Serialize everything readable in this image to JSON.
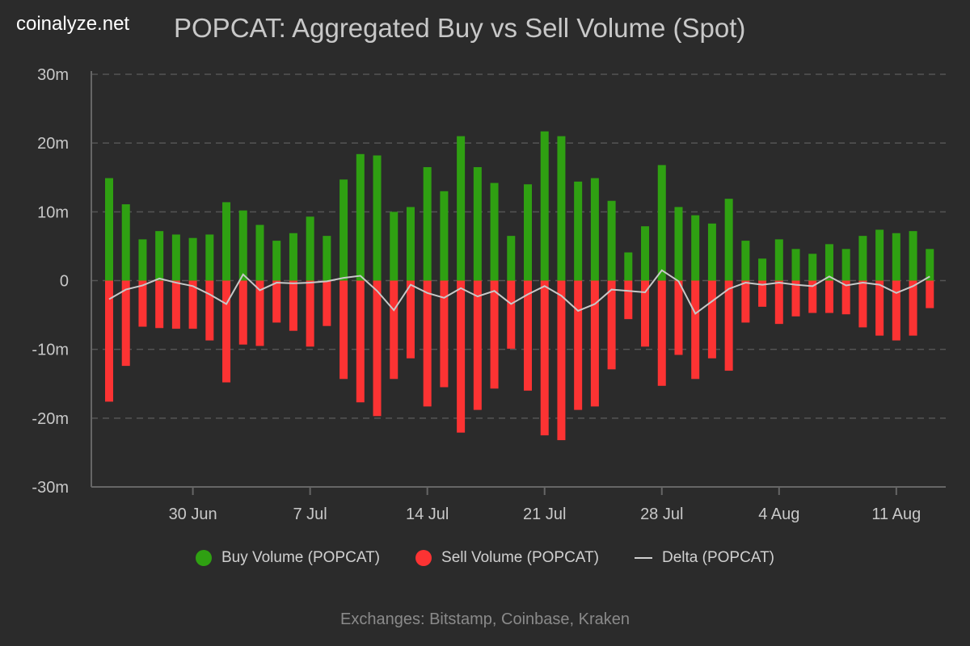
{
  "brand": "coinalyze.net",
  "title": "POPCAT: Aggregated Buy vs Sell Volume (Spot)",
  "footer": "Exchanges: Bitstamp, Coinbase, Kraken",
  "colors": {
    "buy": "#2fa012",
    "sell": "#fc3333",
    "delta": "#c8c8c8",
    "grid": "#555555"
  },
  "chart_data": {
    "type": "bar",
    "title": "POPCAT: Aggregated Buy vs Sell Volume (Spot)",
    "ylim": [
      -30,
      30
    ],
    "y_unit": "m",
    "y_ticks": [
      {
        "v": 30,
        "label": "30m"
      },
      {
        "v": 20,
        "label": "20m"
      },
      {
        "v": 10,
        "label": "10m"
      },
      {
        "v": 0,
        "label": "0"
      },
      {
        "v": -10,
        "label": "-10m"
      },
      {
        "v": -20,
        "label": "-20m"
      },
      {
        "v": -30,
        "label": "-30m"
      }
    ],
    "x_start": "25 Jun",
    "x_end": "13 Aug",
    "x_ticks": [
      {
        "i": 5,
        "label": "30 Jun"
      },
      {
        "i": 12,
        "label": "7 Jul"
      },
      {
        "i": 19,
        "label": "14 Jul"
      },
      {
        "i": 26,
        "label": "21 Jul"
      },
      {
        "i": 33,
        "label": "28 Jul"
      },
      {
        "i": 40,
        "label": "4 Aug"
      },
      {
        "i": 47,
        "label": "11 Aug"
      }
    ],
    "grid": true,
    "legend": "bottom",
    "series": [
      {
        "name": "Buy Volume (POPCAT)",
        "type": "bar",
        "values": [
          14.9,
          11.1,
          6.0,
          7.2,
          6.7,
          6.2,
          6.7,
          11.4,
          10.2,
          8.1,
          5.8,
          6.9,
          9.3,
          6.5,
          14.7,
          18.4,
          18.2,
          10.0,
          10.7,
          16.5,
          13.0,
          21.0,
          16.5,
          14.2,
          6.5,
          14.0,
          21.7,
          21.0,
          14.4,
          14.9,
          11.6,
          4.1,
          7.9,
          16.8,
          10.7,
          9.5,
          8.3,
          11.9,
          5.8,
          3.2,
          6.0,
          4.6,
          3.9,
          5.3,
          4.6,
          6.5,
          7.4,
          6.9,
          7.2,
          4.6
        ]
      },
      {
        "name": "Sell Volume (POPCAT)",
        "type": "bar",
        "values": [
          -17.6,
          -12.4,
          -6.7,
          -6.9,
          -7.0,
          -7.0,
          -8.7,
          -14.8,
          -9.3,
          -9.5,
          -6.1,
          -7.3,
          -9.6,
          -6.6,
          -14.3,
          -17.7,
          -19.7,
          -14.3,
          -11.3,
          -18.3,
          -15.5,
          -22.1,
          -18.8,
          -15.7,
          -9.9,
          -16.0,
          -22.5,
          -23.2,
          -18.8,
          -18.3,
          -12.9,
          -5.6,
          -9.6,
          -15.3,
          -10.8,
          -14.3,
          -11.3,
          -13.1,
          -6.1,
          -3.8,
          -6.3,
          -5.2,
          -4.7,
          -4.7,
          -4.9,
          -6.8,
          -8.0,
          -8.7,
          -8.0,
          -4.0
        ]
      },
      {
        "name": "Delta (POPCAT)",
        "type": "line",
        "values": [
          -2.7,
          -1.3,
          -0.7,
          0.3,
          -0.3,
          -0.8,
          -2.0,
          -3.4,
          0.9,
          -1.4,
          -0.3,
          -0.4,
          -0.3,
          -0.1,
          0.4,
          0.7,
          -1.5,
          -4.3,
          -0.6,
          -1.8,
          -2.5,
          -1.1,
          -2.3,
          -1.5,
          -3.4,
          -2.0,
          -0.8,
          -2.2,
          -4.4,
          -3.4,
          -1.3,
          -1.5,
          -1.7,
          1.5,
          -0.1,
          -4.8,
          -3.0,
          -1.2,
          -0.3,
          -0.6,
          -0.3,
          -0.6,
          -0.8,
          0.6,
          -0.7,
          -0.3,
          -0.6,
          -1.8,
          -0.8,
          0.6
        ]
      }
    ]
  }
}
